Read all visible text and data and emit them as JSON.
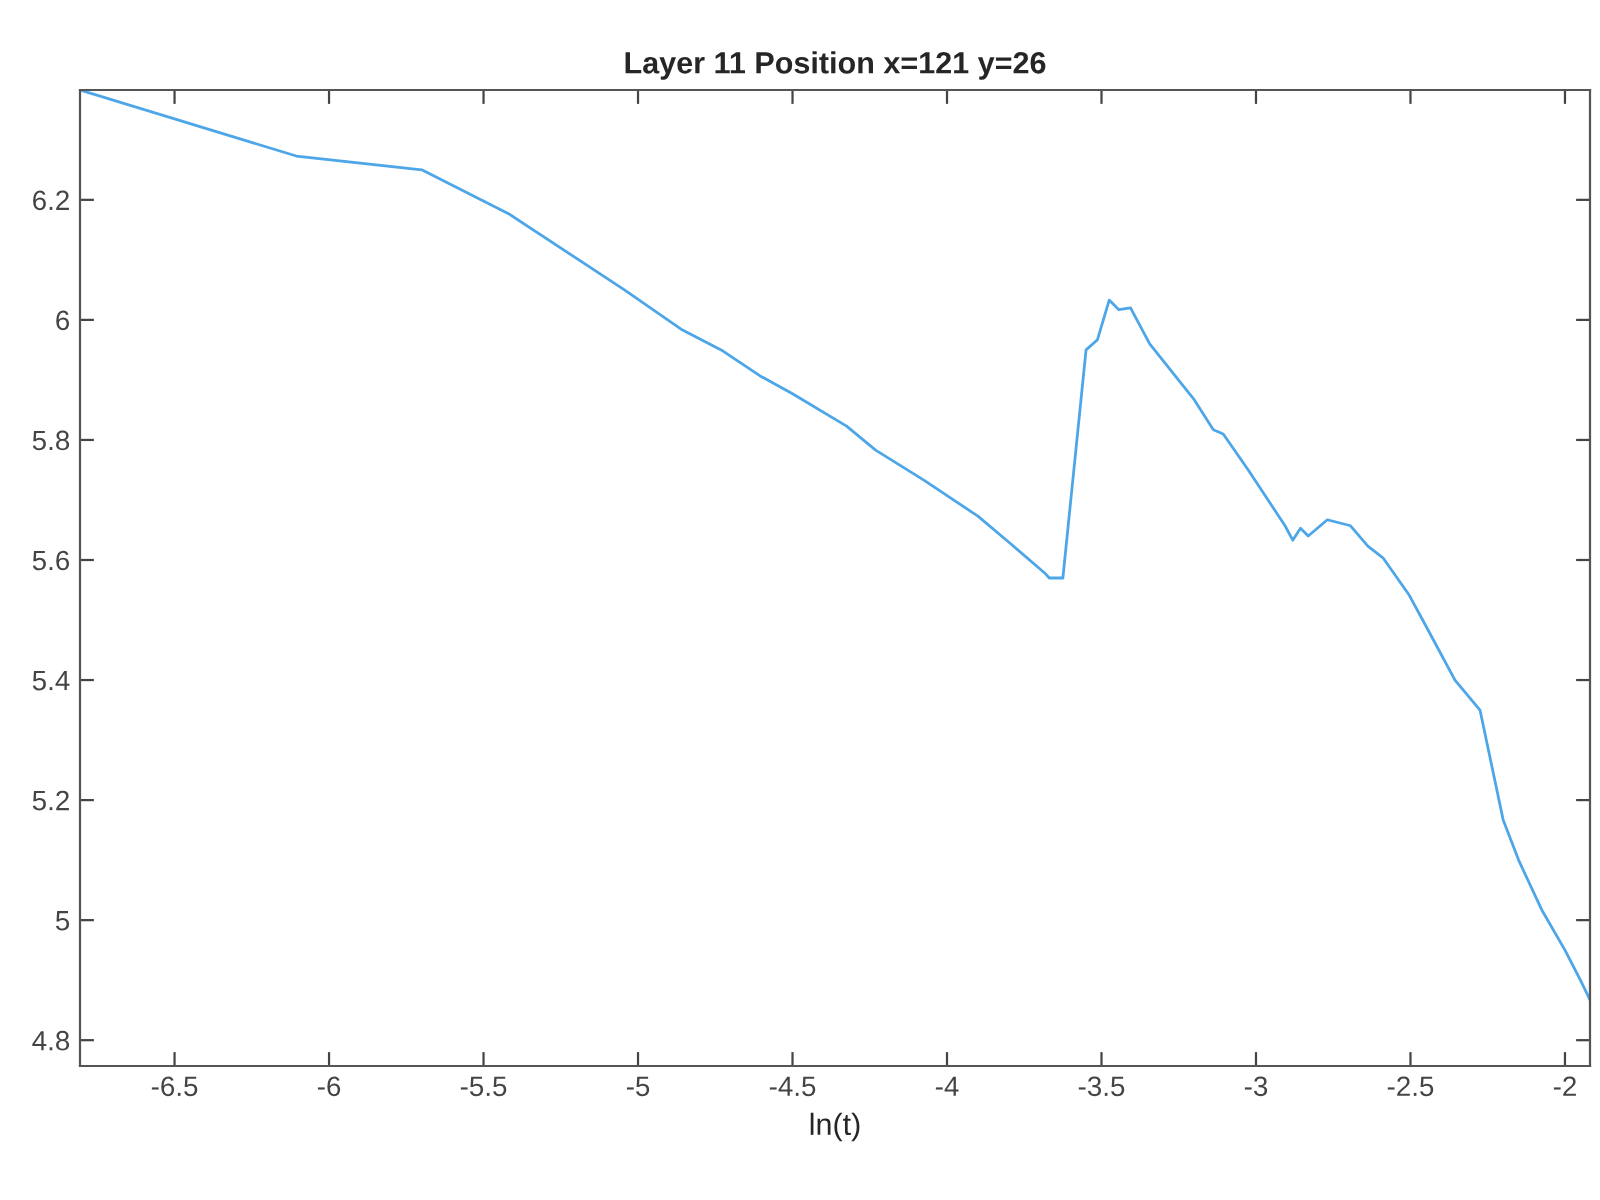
{
  "chart_data": {
    "type": "line",
    "title": "Layer 11 Position x=121 y=26",
    "xlabel": "ln(t)",
    "x": [
      -6.806,
      -6.106,
      -5.7,
      -5.419,
      -5.044,
      -4.856,
      -4.731,
      -4.606,
      -4.5,
      -4.325,
      -4.231,
      -4.075,
      -3.9,
      -3.794,
      -3.681,
      -3.669,
      -3.625,
      -3.55,
      -3.513,
      -3.475,
      -3.444,
      -3.406,
      -3.344,
      -3.2,
      -3.138,
      -3.106,
      -3.025,
      -2.906,
      -2.881,
      -2.856,
      -2.831,
      -2.769,
      -2.694,
      -2.638,
      -2.588,
      -2.506,
      -2.45,
      -2.356,
      -2.275,
      -2.2,
      -2.15,
      -2.075,
      -2.0,
      -1.95,
      -1.919
    ],
    "series": [
      {
        "color": "#4da6e8",
        "values": [
          6.383,
          6.273,
          6.25,
          6.177,
          6.05,
          5.983,
          5.95,
          5.907,
          5.877,
          5.823,
          5.783,
          5.733,
          5.673,
          5.627,
          5.577,
          5.57,
          5.57,
          5.95,
          5.967,
          6.033,
          6.017,
          6.02,
          5.96,
          5.867,
          5.817,
          5.81,
          5.75,
          5.657,
          5.633,
          5.653,
          5.64,
          5.667,
          5.657,
          5.623,
          5.603,
          5.543,
          5.49,
          5.4,
          5.35,
          5.167,
          5.1,
          5.017,
          4.95,
          4.9,
          4.867
        ]
      }
    ],
    "xlim": [
      -6.806,
      -1.919
    ],
    "ylim": [
      4.757,
      6.383
    ],
    "xticks": [
      -6.5,
      -6,
      -5.5,
      -5,
      -4.5,
      -4,
      -3.5,
      -3,
      -2.5,
      -2
    ],
    "yticks": [
      4.8,
      5,
      5.2,
      5.4,
      5.6,
      5.8,
      6,
      6.2
    ],
    "grid": false,
    "legend": false
  }
}
